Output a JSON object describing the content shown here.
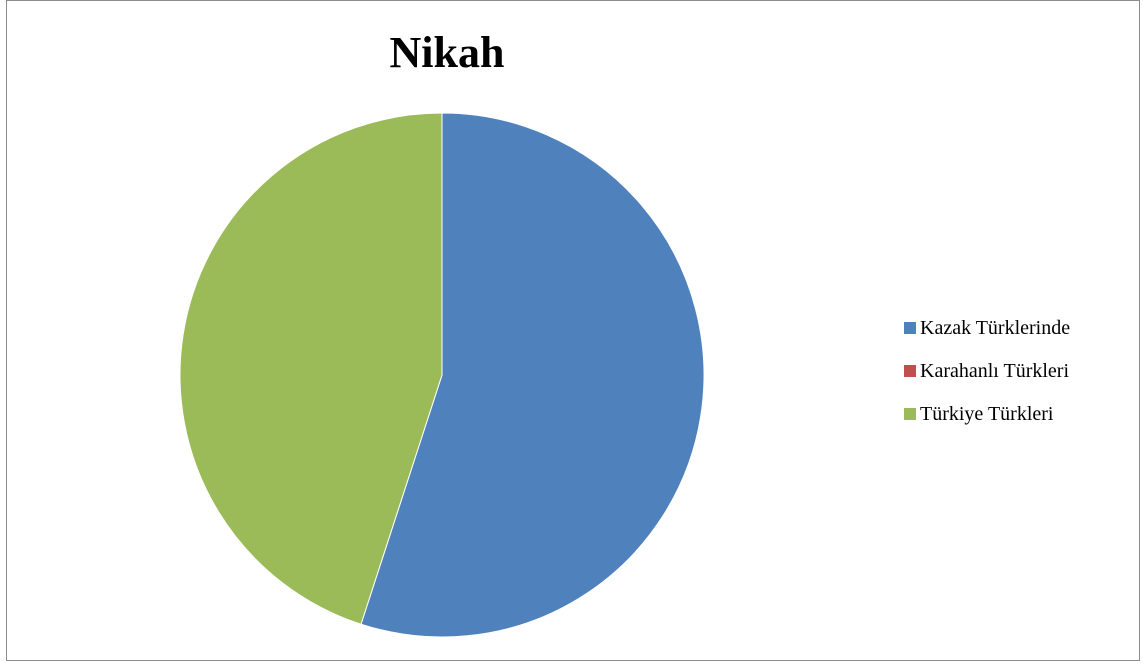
{
  "chart_data": {
    "type": "pie",
    "title": "Nikah",
    "categories": [
      "Kazak Türklerinde",
      "Karahanlı Türkleri",
      "Türkiye Türkleri"
    ],
    "values": [
      55,
      0,
      45
    ],
    "colors": [
      "#4f81bd",
      "#c0504d",
      "#9bbb59"
    ],
    "start_angle_deg": 0,
    "direction": "clockwise",
    "legend_position": "right"
  }
}
